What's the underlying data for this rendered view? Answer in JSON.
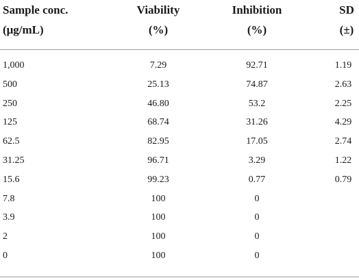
{
  "table": {
    "headers": {
      "conc": [
        "Sample conc.",
        "(μg/mL)"
      ],
      "viability": [
        "Viability",
        "(%)"
      ],
      "inhibition": [
        "Inhibition",
        "(%)"
      ],
      "sd": [
        "SD",
        "(±)"
      ]
    },
    "rows": [
      {
        "conc": "1,000",
        "viability": "7.29",
        "inhibition": "92.71",
        "sd": "1.19"
      },
      {
        "conc": "500",
        "viability": "25.13",
        "inhibition": "74.87",
        "sd": "2.63"
      },
      {
        "conc": "250",
        "viability": "46.80",
        "inhibition": "53.2",
        "sd": "2.25"
      },
      {
        "conc": "125",
        "viability": "68.74",
        "inhibition": "31.26",
        "sd": "4.29"
      },
      {
        "conc": "62.5",
        "viability": "82.95",
        "inhibition": "17.05",
        "sd": "2.74"
      },
      {
        "conc": "31.25",
        "viability": "96.71",
        "inhibition": "3.29",
        "sd": "1.22"
      },
      {
        "conc": "15.6",
        "viability": "99.23",
        "inhibition": "0.77",
        "sd": "0.79"
      },
      {
        "conc": "7.8",
        "viability": "100",
        "inhibition": "0",
        "sd": ""
      },
      {
        "conc": "3.9",
        "viability": "100",
        "inhibition": "0",
        "sd": ""
      },
      {
        "conc": "2",
        "viability": "100",
        "inhibition": "0",
        "sd": ""
      },
      {
        "conc": "0",
        "viability": "100",
        "inhibition": "0",
        "sd": ""
      }
    ]
  },
  "colors": {
    "rule": "#9a9a9a",
    "text": "#1a1a1a",
    "background": "#ffffff"
  }
}
